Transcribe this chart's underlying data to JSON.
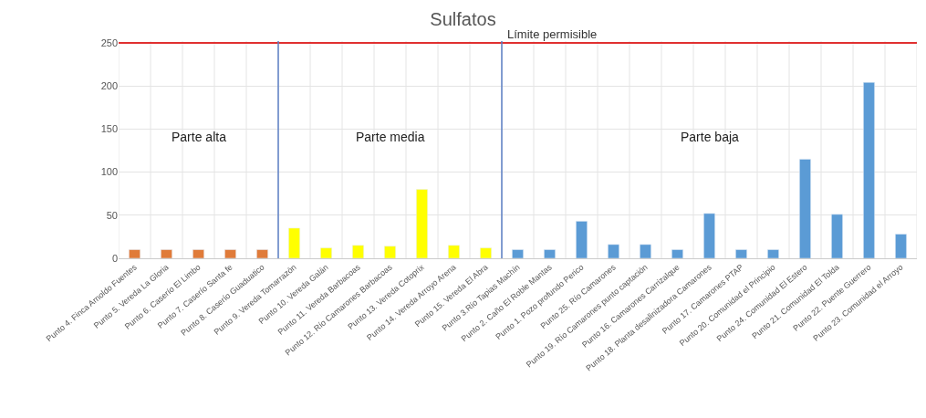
{
  "chart_data": {
    "type": "bar",
    "title": "Sulfatos",
    "categories": [
      "Punto 4. Finca Arnoldo Fuentes",
      "Punto 5. Vereda La Gloria",
      "Punto 6. Caserío El Limbo",
      "Punto 7. Caserío Santa fe",
      "Punto 8. Caserío Guaduatico",
      "Punto 9. Vereda Tomarrazón",
      "Punto 10. Vereda Galán",
      "Punto 11. Vereda Barbacoas",
      "Punto 12. Río Camarones Barbacoas",
      "Punto 13. Vereda Cotoprix",
      "Punto 14. Vereda Arroyo Arena",
      "Punto 15. Vereda El Abra",
      "Punto 3.Río Tapias Machín",
      "Punto 2. Caño El Roble Mantas",
      "Punto 1. Pozo profundo Perico",
      "Punto 25. Río Camarones",
      "Punto 19. Río Camarones punto captación",
      "Punto 16. Camarones Carrizalque",
      "Punto 18. Planta desalinizadora Camarones",
      "Punto 17. Camarones PTAP",
      "Punto 20. Comunidad el Principio",
      "Punto 24. Comunidad El Estero",
      "Punto 21. Comunidad El Tolda",
      "Punto 22. Puente Guerrero",
      "Punto 23. Comunidad el Arroyo"
    ],
    "values": [
      10,
      10,
      10,
      10,
      10,
      35,
      12,
      15,
      14,
      80,
      15,
      12,
      10,
      10,
      43,
      16,
      16,
      10,
      52,
      10,
      10,
      115,
      51,
      204,
      28
    ],
    "colors": [
      "#e07b39",
      "#e07b39",
      "#e07b39",
      "#e07b39",
      "#e07b39",
      "#ffff00",
      "#ffff00",
      "#ffff00",
      "#ffff00",
      "#ffff00",
      "#ffff00",
      "#ffff00",
      "#5b9bd5",
      "#5b9bd5",
      "#5b9bd5",
      "#5b9bd5",
      "#5b9bd5",
      "#5b9bd5",
      "#5b9bd5",
      "#5b9bd5",
      "#5b9bd5",
      "#5b9bd5",
      "#5b9bd5",
      "#5b9bd5",
      "#5b9bd5"
    ],
    "ylim": [
      0,
      252
    ],
    "yticks": [
      0,
      50,
      100,
      150,
      200,
      250
    ],
    "grid": true,
    "ref_lines": [
      {
        "axis": "y",
        "value": 250,
        "label": "Límite permisible",
        "color": "#e03030"
      }
    ],
    "annotations": [
      "Parte alta",
      "Parte media",
      "Parte baja"
    ]
  }
}
